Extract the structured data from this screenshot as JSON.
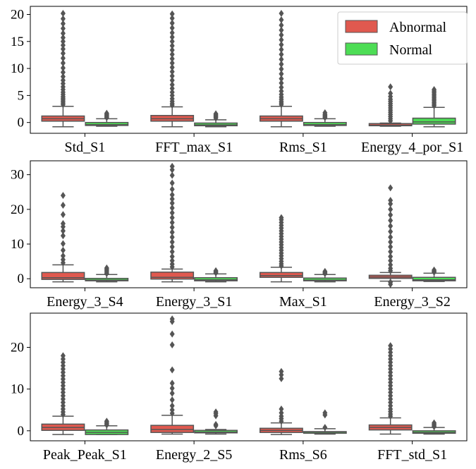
{
  "colors": {
    "abnormal": "#e0594f",
    "normal": "#4ddd55",
    "box_edge": "#555555",
    "flier": "#555555"
  },
  "legend": {
    "placement": "top-right",
    "items": [
      {
        "label": "Abnormal",
        "color": "#e0594f"
      },
      {
        "label": "Normal",
        "color": "#4ddd55"
      }
    ]
  },
  "chart_data": [
    {
      "type": "box",
      "series_names": [
        "Abnormal",
        "Normal"
      ],
      "categories": [
        "Std_S1",
        "FFT_max_S1",
        "Rms_S1",
        "Energy_4_por_S1"
      ],
      "ylim": [
        -2.0,
        21.5
      ],
      "yticks": [
        "0",
        "5",
        "10",
        "15",
        "20"
      ],
      "ytick_values": [
        0,
        5,
        10,
        15,
        20
      ],
      "boxes": [
        [
          {
            "whislo": -0.8,
            "q1": 0.25,
            "med": 0.7,
            "q3": 1.2,
            "whishi": 3.0,
            "fliers": [
              3.3,
              3.6,
              3.9,
              4.2,
              4.5,
              4.8,
              5.2,
              5.6,
              6.1,
              6.6,
              7.2,
              7.8,
              8.5,
              9.3,
              10.1,
              11.0,
              11.9,
              12.8,
              13.6,
              14.3,
              15.0,
              15.7,
              16.5,
              17.4,
              18.3,
              19.2,
              20.2
            ]
          },
          {
            "whislo": -0.7,
            "q1": -0.55,
            "med": -0.4,
            "q3": 0.0,
            "whishi": 0.7,
            "fliers": [
              0.9,
              1.1,
              1.3,
              1.5,
              1.7
            ]
          }
        ],
        [
          {
            "whislo": -0.8,
            "q1": 0.25,
            "med": 0.7,
            "q3": 1.3,
            "whishi": 2.9,
            "fliers": [
              3.2,
              3.5,
              3.9,
              4.4,
              5.0,
              5.6,
              6.3,
              7.0,
              7.8,
              8.6,
              9.4,
              10.2,
              11.0,
              11.8,
              12.6,
              13.4,
              14.2,
              15.0,
              15.8,
              16.6,
              17.5,
              18.4,
              19.3,
              20.1
            ]
          },
          {
            "whislo": -0.8,
            "q1": -0.6,
            "med": -0.45,
            "q3": -0.1,
            "whishi": 0.5,
            "fliers": [
              0.8,
              1.0,
              1.2,
              1.4,
              1.6
            ]
          }
        ],
        [
          {
            "whislo": -0.8,
            "q1": 0.25,
            "med": 0.7,
            "q3": 1.2,
            "whishi": 3.0,
            "fliers": [
              3.3,
              3.6,
              3.9,
              4.3,
              4.7,
              5.2,
              5.8,
              6.5,
              7.3,
              8.1,
              9.0,
              9.9,
              10.8,
              11.7,
              12.6,
              13.5,
              14.4,
              15.3,
              16.2,
              17.1,
              18.0,
              19.0,
              20.2
            ]
          },
          {
            "whislo": -0.7,
            "q1": -0.55,
            "med": -0.4,
            "q3": 0.0,
            "whishi": 0.7,
            "fliers": [
              0.9,
              1.1,
              1.3,
              1.5,
              1.8
            ]
          }
        ],
        [
          {
            "whislo": -0.7,
            "q1": -0.6,
            "med": -0.5,
            "q3": -0.2,
            "whishi": -0.1,
            "fliers": [
              0.3,
              0.7,
              1.1,
              1.5,
              1.9,
              2.3,
              2.7,
              3.1,
              3.5,
              3.9,
              4.3,
              4.8,
              5.4,
              6.6
            ]
          },
          {
            "whislo": -0.8,
            "q1": -0.3,
            "med": 0.1,
            "q3": 0.8,
            "whishi": 2.8,
            "fliers": [
              3.1,
              3.4,
              3.7,
              4.0,
              4.3,
              4.6,
              4.9,
              5.2,
              5.5,
              5.8,
              6.1
            ]
          }
        ]
      ]
    },
    {
      "type": "box",
      "series_names": [
        "Abnormal",
        "Normal"
      ],
      "categories": [
        "Energy_3_S4",
        "Energy_3_S1",
        "Max_S1",
        "Energy_3_S2"
      ],
      "ylim": [
        -2.6,
        34.0
      ],
      "yticks": [
        "0",
        "10",
        "20",
        "30"
      ],
      "ytick_values": [
        0,
        10,
        20,
        30
      ],
      "boxes": [
        [
          {
            "whislo": -0.9,
            "q1": -0.2,
            "med": 0.3,
            "q3": 1.8,
            "whishi": 4.0,
            "fliers": [
              4.6,
              5.5,
              6.6,
              8.2,
              10.1,
              12.4,
              13.8,
              15.0,
              15.9,
              18.5,
              21.2,
              24.0
            ]
          },
          {
            "whislo": -0.9,
            "q1": -0.6,
            "med": -0.4,
            "q3": 0.1,
            "whishi": 1.2,
            "fliers": [
              1.5,
              1.9,
              2.3,
              2.7,
              3.1
            ]
          }
        ],
        [
          {
            "whislo": -0.9,
            "q1": -0.1,
            "med": 0.4,
            "q3": 1.9,
            "whishi": 2.8,
            "fliers": [
              3.4,
              4.2,
              5.2,
              6.4,
              7.8,
              9.2,
              10.6,
              12.0,
              13.4,
              14.8,
              16.2,
              17.6,
              19.0,
              20.4,
              21.8,
              23.0,
              24.2,
              25.8,
              27.6,
              29.8,
              31.4,
              32.4
            ]
          },
          {
            "whislo": -0.9,
            "q1": -0.6,
            "med": -0.3,
            "q3": 0.3,
            "whishi": 1.4,
            "fliers": [
              1.7,
              2.0,
              2.3
            ]
          }
        ],
        [
          {
            "whislo": -0.9,
            "q1": 0.4,
            "med": 0.9,
            "q3": 1.8,
            "whishi": 3.3,
            "fliers": [
              3.7,
              4.3,
              5.0,
              5.8,
              6.6,
              7.4,
              8.2,
              9.0,
              9.8,
              10.6,
              11.4,
              12.2,
              13.0,
              13.8,
              14.6,
              15.4,
              16.2,
              17.0,
              17.6
            ]
          },
          {
            "whislo": -0.9,
            "q1": -0.6,
            "med": -0.4,
            "q3": 0.2,
            "whishi": 1.2,
            "fliers": [
              1.5,
              1.8,
              2.1
            ]
          }
        ],
        [
          {
            "whislo": -0.7,
            "q1": 0.1,
            "med": 0.5,
            "q3": 1.0,
            "whishi": 1.8,
            "fliers": [
              -1.6,
              -1.0,
              2.3,
              3.0,
              4.0,
              5.2,
              6.4,
              7.8,
              9.2,
              10.6,
              12.0,
              13.6,
              15.2,
              16.8,
              18.4,
              20.0,
              21.6,
              22.6,
              26.2
            ]
          },
          {
            "whislo": -0.8,
            "q1": -0.6,
            "med": -0.3,
            "q3": 0.4,
            "whishi": 1.6,
            "fliers": [
              1.9,
              2.2,
              2.5
            ]
          }
        ]
      ]
    },
    {
      "type": "box",
      "series_names": [
        "Abnormal",
        "Normal"
      ],
      "categories": [
        "Peak_Peak_S1",
        "Energy_2_S5",
        "Rms_S6",
        "FFT_std_S1"
      ],
      "ylim": [
        -2.4,
        28.2
      ],
      "yticks": [
        "0",
        "10",
        "20"
      ],
      "ytick_values": [
        0,
        10,
        20
      ],
      "boxes": [
        [
          {
            "whislo": -0.9,
            "q1": 0.1,
            "med": 0.8,
            "q3": 1.6,
            "whishi": 3.5,
            "fliers": [
              3.9,
              4.5,
              5.2,
              6.0,
              6.8,
              7.6,
              8.4,
              9.2,
              10.0,
              10.8,
              11.6,
              12.4,
              13.2,
              14.0,
              14.8,
              15.6,
              16.4,
              17.2,
              18.0
            ]
          },
          {
            "whislo": -0.9,
            "q1": -0.9,
            "med": -0.4,
            "q3": 0.2,
            "whishi": 1.2,
            "fliers": [
              1.4,
              1.7,
              2.0,
              2.3
            ]
          }
        ],
        [
          {
            "whislo": -0.8,
            "q1": -0.4,
            "med": 0.3,
            "q3": 1.3,
            "whishi": 3.7,
            "fliers": [
              4.2,
              5.0,
              6.0,
              7.4,
              9.0,
              10.2,
              11.4,
              14.6,
              20.6,
              23.2,
              26.2,
              26.8
            ]
          },
          {
            "whislo": -0.8,
            "q1": -0.5,
            "med": -0.3,
            "q3": 0.1,
            "whishi": 0.3,
            "fliers": [
              1.2,
              1.5,
              3.6,
              4.1,
              4.5
            ]
          }
        ],
        [
          {
            "whislo": -0.9,
            "q1": -0.4,
            "med": 0.1,
            "q3": 0.6,
            "whishi": 1.9,
            "fliers": [
              2.3,
              2.9,
              3.5,
              4.3,
              5.2,
              12.5,
              13.4,
              14.2
            ]
          },
          {
            "whislo": -0.8,
            "q1": -0.6,
            "med": -0.3,
            "q3": -0.2,
            "whishi": 0.5,
            "fliers": [
              0.8,
              3.8,
              4.3
            ]
          }
        ],
        [
          {
            "whislo": -0.8,
            "q1": 0.2,
            "med": 0.8,
            "q3": 1.4,
            "whishi": 3.1,
            "fliers": [
              3.5,
              4.0,
              4.6,
              5.2,
              6.0,
              6.8,
              7.6,
              8.4,
              9.2,
              10.0,
              10.8,
              11.6,
              12.4,
              13.2,
              14.0,
              14.8,
              15.6,
              16.4,
              17.2,
              18.0,
              18.8,
              19.6,
              20.4
            ]
          },
          {
            "whislo": -0.8,
            "q1": -0.6,
            "med": -0.4,
            "q3": 0.0,
            "whishi": 0.8,
            "fliers": [
              1.0,
              1.3,
              1.6,
              1.9
            ]
          }
        ]
      ]
    }
  ]
}
